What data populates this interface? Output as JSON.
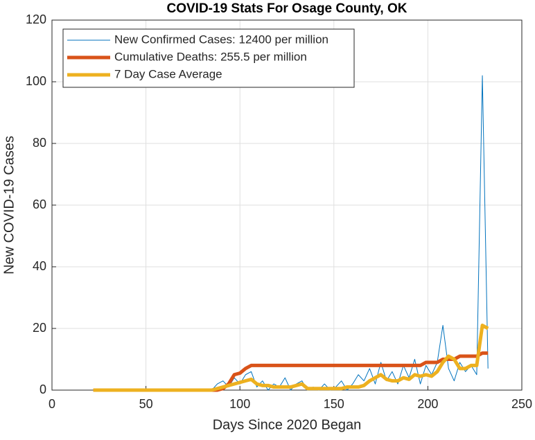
{
  "chart_data": {
    "type": "line",
    "title": "COVID-19 Stats For Osage County, OK",
    "xlabel": "Days Since 2020 Began",
    "ylabel": "New COVID-19 Cases",
    "x": [
      22,
      25,
      28,
      31,
      34,
      37,
      40,
      43,
      46,
      49,
      52,
      55,
      58,
      61,
      64,
      67,
      70,
      73,
      76,
      79,
      82,
      85,
      88,
      91,
      94,
      97,
      100,
      103,
      106,
      109,
      112,
      115,
      118,
      121,
      124,
      127,
      130,
      133,
      136,
      139,
      142,
      145,
      148,
      151,
      154,
      157,
      160,
      163,
      166,
      169,
      172,
      175,
      178,
      181,
      184,
      187,
      190,
      193,
      196,
      199,
      202,
      205,
      208,
      211,
      214,
      217,
      220,
      223,
      226,
      229,
      232
    ],
    "series": [
      {
        "name": "New Confirmed Cases: 12400 per million",
        "color": "#0072BD",
        "width": 1,
        "values": [
          0,
          0,
          0,
          0,
          0,
          0,
          0,
          0,
          0,
          0,
          0,
          0,
          0,
          0,
          0,
          0,
          0,
          0,
          0,
          0,
          0,
          0,
          2,
          3,
          1,
          4,
          2,
          5,
          6,
          1,
          3,
          0,
          2,
          1,
          4,
          0,
          2,
          3,
          0,
          1,
          0,
          2,
          0,
          1,
          3,
          0,
          2,
          5,
          3,
          7,
          2,
          9,
          3,
          6,
          2,
          8,
          4,
          10,
          2,
          8,
          5,
          9,
          21,
          7,
          3,
          9,
          6,
          8,
          5,
          102,
          7
        ]
      },
      {
        "name": "Cumulative Deaths: 255.5 per million",
        "color": "#D95319",
        "width": 5,
        "values": [
          0,
          0,
          0,
          0,
          0,
          0,
          0,
          0,
          0,
          0,
          0,
          0,
          0,
          0,
          0,
          0,
          0,
          0,
          0,
          0,
          0,
          0,
          0,
          0.5,
          2,
          5,
          5.5,
          7,
          8,
          8,
          8,
          8,
          8,
          8,
          8,
          8,
          8,
          8,
          8,
          8,
          8,
          8,
          8,
          8,
          8,
          8,
          8,
          8,
          8,
          8,
          8,
          8,
          8,
          8,
          8,
          8,
          8,
          8,
          8,
          9,
          9,
          9,
          10,
          10,
          10,
          11,
          11,
          11,
          11,
          12,
          12
        ]
      },
      {
        "name": "7 Day Case Average",
        "color": "#EDB120",
        "width": 5,
        "values": [
          0,
          0,
          0,
          0,
          0,
          0,
          0,
          0,
          0,
          0,
          0,
          0,
          0,
          0,
          0,
          0,
          0,
          0,
          0,
          0,
          0,
          0,
          0.5,
          1,
          1.5,
          2,
          2.5,
          3,
          3.5,
          2,
          1.5,
          1.5,
          1,
          1,
          1,
          1,
          1.5,
          2,
          0.5,
          0.5,
          0.5,
          0.5,
          0.5,
          0.5,
          0.5,
          1,
          1,
          1,
          1.5,
          3,
          4,
          5,
          3.5,
          3,
          3,
          4,
          3.5,
          5,
          4.5,
          5,
          4.5,
          6,
          9,
          11,
          10,
          7,
          7,
          8,
          8,
          21,
          20
        ]
      }
    ],
    "xlim": [
      0,
      250
    ],
    "xticks": [
      0,
      50,
      100,
      150,
      200,
      250
    ],
    "ylim": [
      0,
      120
    ],
    "yticks": [
      0,
      20,
      40,
      60,
      80,
      100,
      120
    ],
    "grid": true,
    "legend": "top-left"
  }
}
